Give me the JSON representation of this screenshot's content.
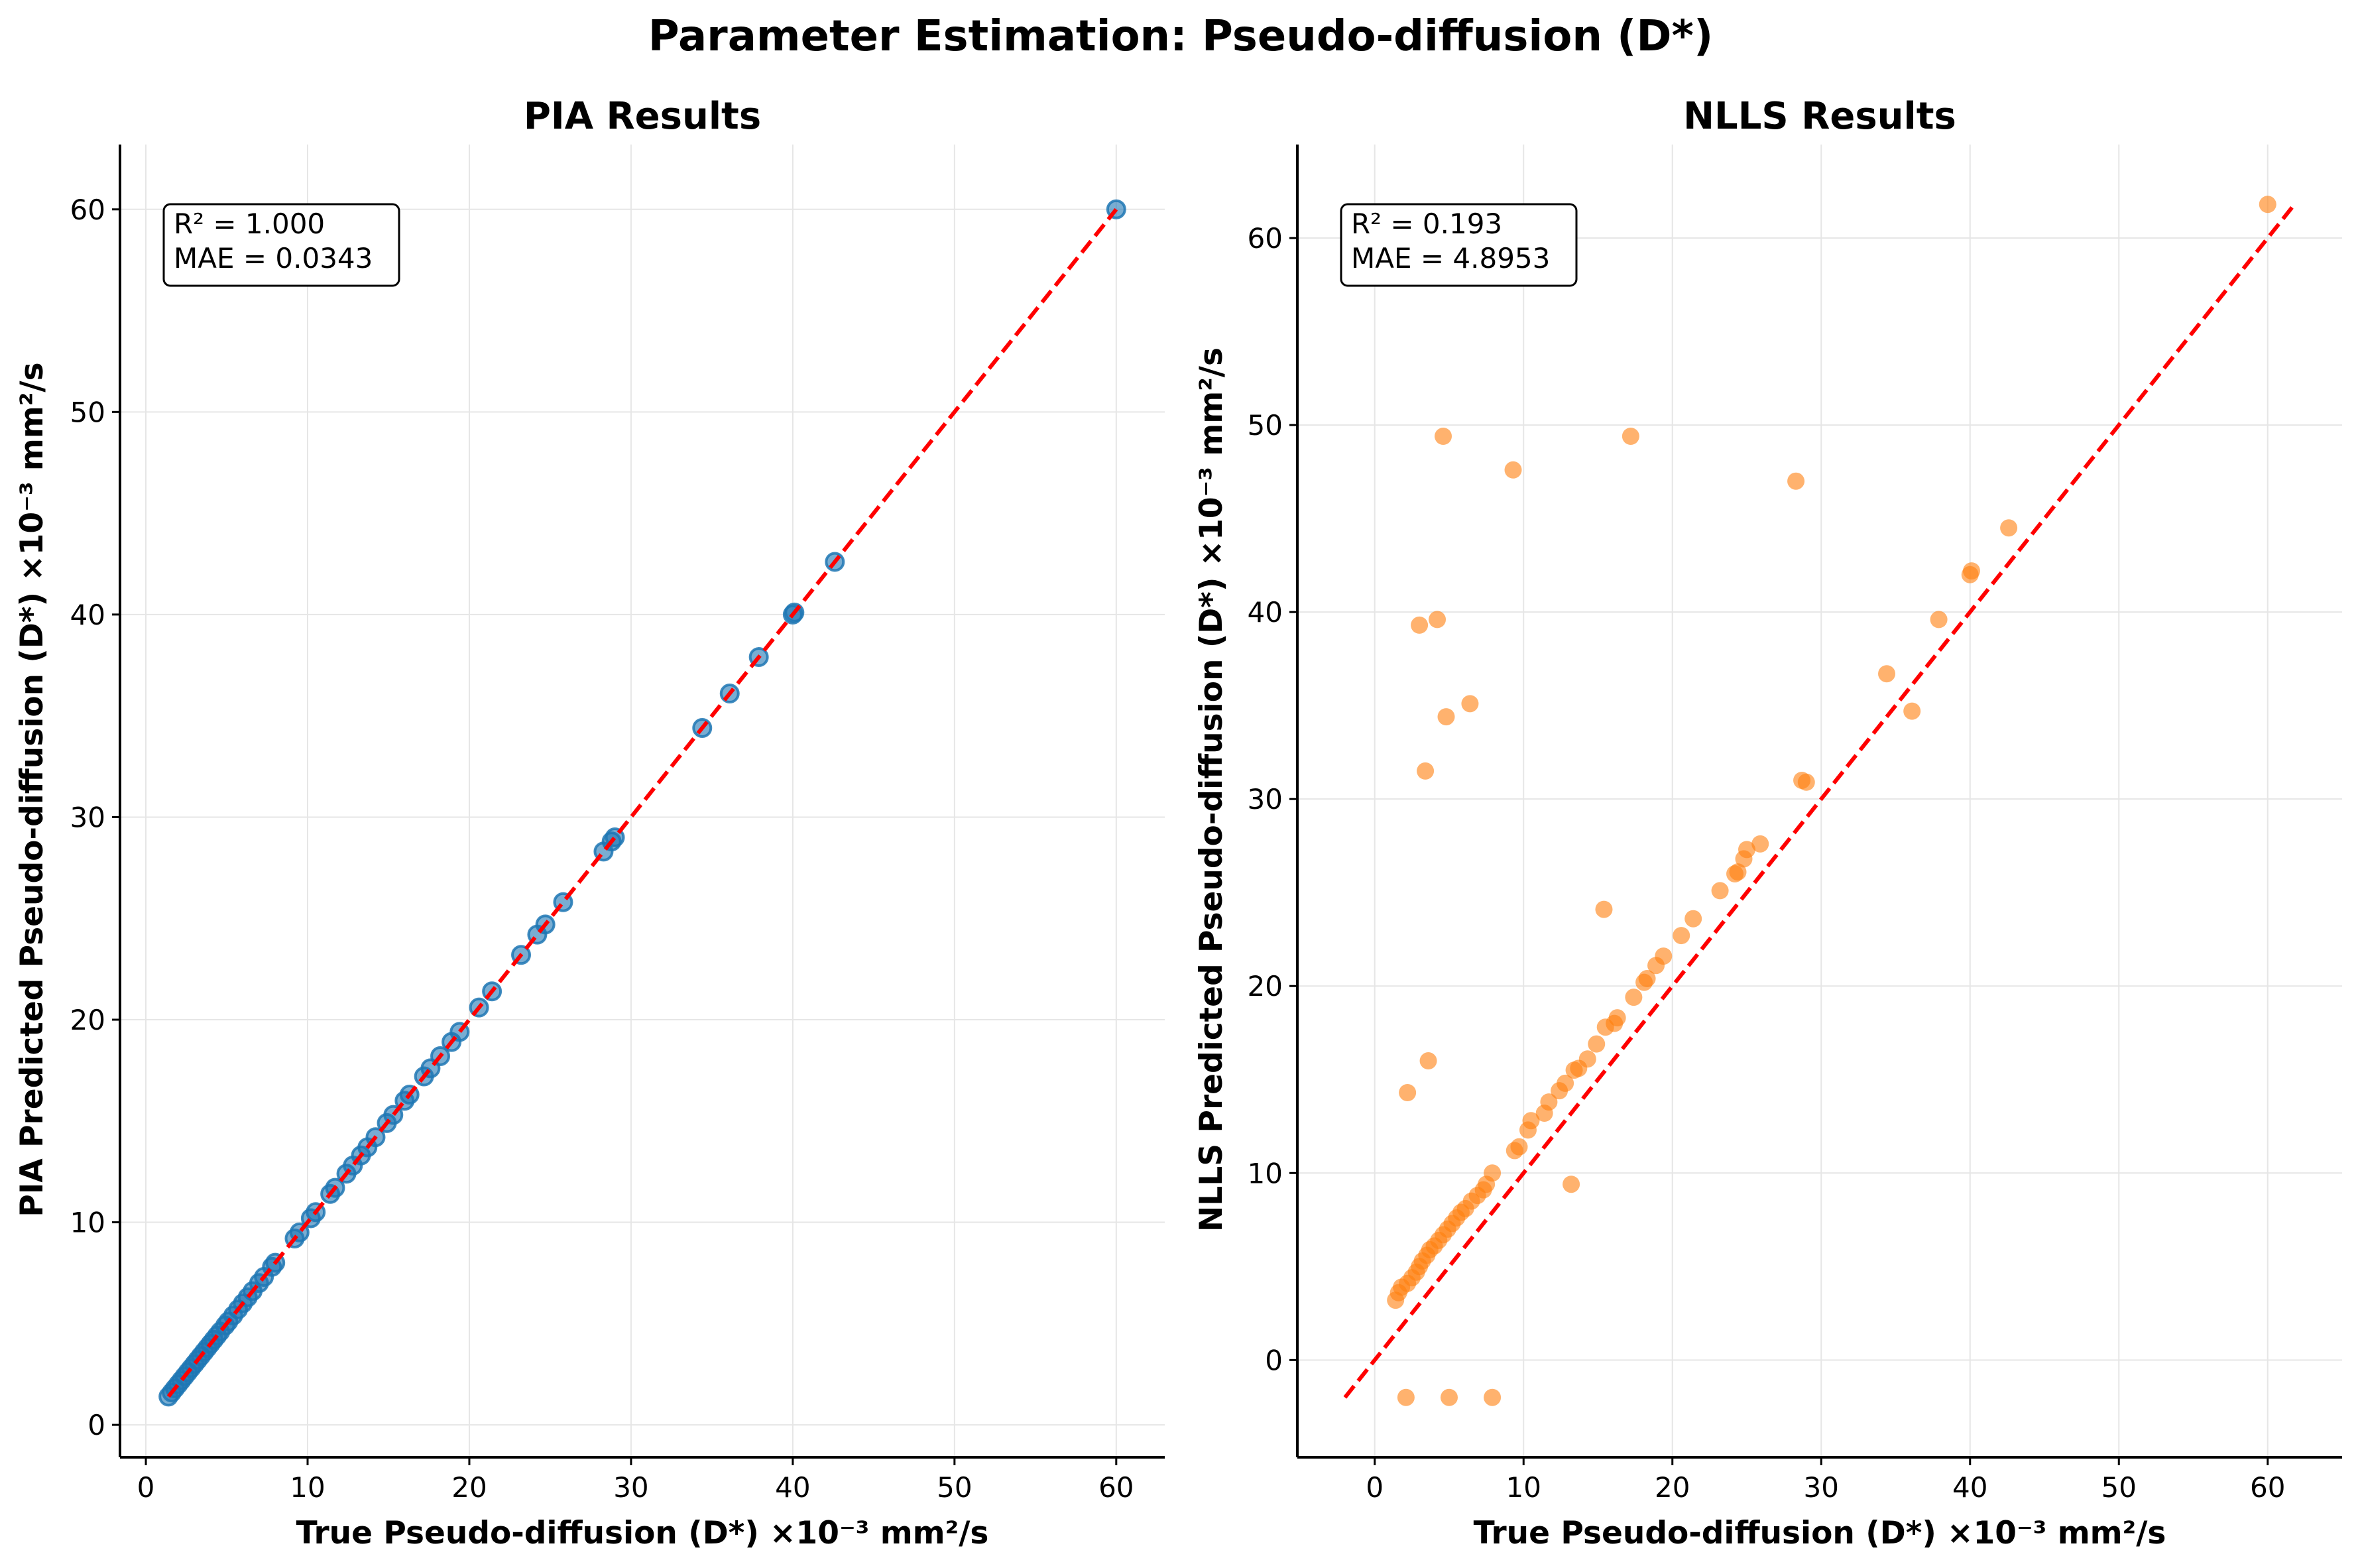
{
  "figure": {
    "title": "Parameter Estimation: Pseudo-diffusion (D*)"
  },
  "colors": {
    "pia": "#1f77b4",
    "nlls": "#ff7f0e",
    "identity_line": "#ff0000",
    "grid": "#e6e6e6"
  },
  "chart_data": [
    {
      "type": "scatter",
      "title": "PIA Results",
      "xlabel": "True Pseudo-diffusion (D*) ×10⁻³ mm²/s",
      "ylabel": "PIA Predicted Pseudo-diffusion (D*) ×10⁻³ mm²/s",
      "xlim": [
        -1.6,
        63.0
      ],
      "ylim": [
        -1.6,
        63.2
      ],
      "xticks": [
        0,
        10,
        20,
        30,
        40,
        50,
        60
      ],
      "yticks": [
        0,
        10,
        20,
        30,
        40,
        50,
        60
      ],
      "grid": true,
      "marker_color": "#1f77b4",
      "identity_line": [
        1.4,
        60.0
      ],
      "stats": {
        "r2": "R² = 1.000",
        "mae": "MAE = 0.0343"
      },
      "points": [
        [
          1.4,
          1.4
        ],
        [
          1.6,
          1.6
        ],
        [
          1.8,
          1.8
        ],
        [
          2.0,
          2.0
        ],
        [
          2.2,
          2.2
        ],
        [
          2.4,
          2.4
        ],
        [
          2.6,
          2.6
        ],
        [
          2.8,
          2.8
        ],
        [
          3.0,
          3.0
        ],
        [
          3.2,
          3.2
        ],
        [
          3.4,
          3.4
        ],
        [
          3.6,
          3.6
        ],
        [
          3.8,
          3.8
        ],
        [
          4.0,
          4.0
        ],
        [
          4.2,
          4.2
        ],
        [
          4.4,
          4.4
        ],
        [
          4.6,
          4.6
        ],
        [
          4.9,
          4.9
        ],
        [
          5.1,
          5.1
        ],
        [
          5.4,
          5.4
        ],
        [
          5.7,
          5.7
        ],
        [
          6.0,
          6.0
        ],
        [
          6.3,
          6.3
        ],
        [
          6.6,
          6.6
        ],
        [
          7.0,
          7.0
        ],
        [
          7.3,
          7.3
        ],
        [
          7.8,
          7.8
        ],
        [
          8.0,
          8.0
        ],
        [
          9.2,
          9.2
        ],
        [
          9.5,
          9.5
        ],
        [
          10.2,
          10.2
        ],
        [
          10.5,
          10.5
        ],
        [
          11.4,
          11.4
        ],
        [
          11.7,
          11.7
        ],
        [
          12.4,
          12.4
        ],
        [
          12.8,
          12.8
        ],
        [
          13.3,
          13.3
        ],
        [
          13.7,
          13.7
        ],
        [
          14.2,
          14.2
        ],
        [
          14.9,
          14.9
        ],
        [
          15.3,
          15.3
        ],
        [
          16.0,
          16.0
        ],
        [
          16.3,
          16.3
        ],
        [
          17.2,
          17.2
        ],
        [
          17.6,
          17.6
        ],
        [
          18.2,
          18.2
        ],
        [
          18.9,
          18.9
        ],
        [
          19.4,
          19.4
        ],
        [
          20.6,
          20.6
        ],
        [
          21.4,
          21.4
        ],
        [
          23.2,
          23.2
        ],
        [
          24.2,
          24.2
        ],
        [
          24.7,
          24.7
        ],
        [
          25.8,
          25.8
        ],
        [
          28.3,
          28.3
        ],
        [
          28.8,
          28.8
        ],
        [
          29.0,
          29.0
        ],
        [
          34.4,
          34.4
        ],
        [
          36.1,
          36.1
        ],
        [
          37.9,
          37.9
        ],
        [
          40.0,
          40.0
        ],
        [
          40.1,
          40.1
        ],
        [
          42.6,
          42.6
        ],
        [
          60.0,
          60.0
        ]
      ]
    },
    {
      "type": "scatter",
      "title": "NLLS Results",
      "xlabel": "True Pseudo-diffusion (D*) ×10⁻³ mm²/s",
      "ylabel": "NLLS Predicted Pseudo-diffusion (D*) ×10⁻³ mm²/s",
      "xlim": [
        -5.2,
        65.0
      ],
      "ylim": [
        -5.2,
        65.0
      ],
      "xticks": [
        0,
        10,
        20,
        30,
        40,
        50,
        60
      ],
      "yticks": [
        0,
        10,
        20,
        30,
        40,
        50,
        60
      ],
      "grid": true,
      "marker_color": "#ff7f0e",
      "identity_line": [
        -2.0,
        61.8
      ],
      "stats": {
        "r2": "R² = 0.193",
        "mae": "MAE = 4.8953"
      },
      "points": [
        [
          1.4,
          3.2
        ],
        [
          1.6,
          3.6
        ],
        [
          1.8,
          3.9
        ],
        [
          2.2,
          4.1
        ],
        [
          2.5,
          4.4
        ],
        [
          2.8,
          4.7
        ],
        [
          3.0,
          5.0
        ],
        [
          3.2,
          5.3
        ],
        [
          3.5,
          5.6
        ],
        [
          3.7,
          5.9
        ],
        [
          4.0,
          6.1
        ],
        [
          4.3,
          6.4
        ],
        [
          4.6,
          6.7
        ],
        [
          4.9,
          7.0
        ],
        [
          5.2,
          7.3
        ],
        [
          5.5,
          7.6
        ],
        [
          5.8,
          7.9
        ],
        [
          6.1,
          8.1
        ],
        [
          6.5,
          8.5
        ],
        [
          6.9,
          8.8
        ],
        [
          7.3,
          9.1
        ],
        [
          7.5,
          9.4
        ],
        [
          7.9,
          10.0
        ],
        [
          9.4,
          11.2
        ],
        [
          9.7,
          11.4
        ],
        [
          10.3,
          12.3
        ],
        [
          10.5,
          12.8
        ],
        [
          11.4,
          13.2
        ],
        [
          11.7,
          13.8
        ],
        [
          12.4,
          14.4
        ],
        [
          12.8,
          14.8
        ],
        [
          13.4,
          15.5
        ],
        [
          13.7,
          15.6
        ],
        [
          14.3,
          16.1
        ],
        [
          14.9,
          16.9
        ],
        [
          15.5,
          17.8
        ],
        [
          16.1,
          18.0
        ],
        [
          16.3,
          18.3
        ],
        [
          17.4,
          19.4
        ],
        [
          18.1,
          20.2
        ],
        [
          18.3,
          20.4
        ],
        [
          18.9,
          21.1
        ],
        [
          19.4,
          21.6
        ],
        [
          20.6,
          22.7
        ],
        [
          21.4,
          23.6
        ],
        [
          23.2,
          25.1
        ],
        [
          24.2,
          26.0
        ],
        [
          24.4,
          26.1
        ],
        [
          24.8,
          26.8
        ],
        [
          25.0,
          27.3
        ],
        [
          25.9,
          27.6
        ],
        [
          28.7,
          31.0
        ],
        [
          29.0,
          30.9
        ],
        [
          34.4,
          36.7
        ],
        [
          36.1,
          34.7
        ],
        [
          37.9,
          39.6
        ],
        [
          40.0,
          42.0
        ],
        [
          40.1,
          42.2
        ],
        [
          42.6,
          44.5
        ],
        [
          60.0,
          61.8
        ],
        [
          2.2,
          14.3
        ],
        [
          3.6,
          16.0
        ],
        [
          3.4,
          31.5
        ],
        [
          4.8,
          34.4
        ],
        [
          6.4,
          35.1
        ],
        [
          3.0,
          39.3
        ],
        [
          4.2,
          39.6
        ],
        [
          4.6,
          49.4
        ],
        [
          9.3,
          47.6
        ],
        [
          17.2,
          49.4
        ],
        [
          28.3,
          47.0
        ],
        [
          15.4,
          24.1
        ],
        [
          13.2,
          9.4
        ],
        [
          2.1,
          -2.0
        ],
        [
          5.0,
          -2.0
        ],
        [
          7.9,
          -2.0
        ]
      ]
    }
  ]
}
